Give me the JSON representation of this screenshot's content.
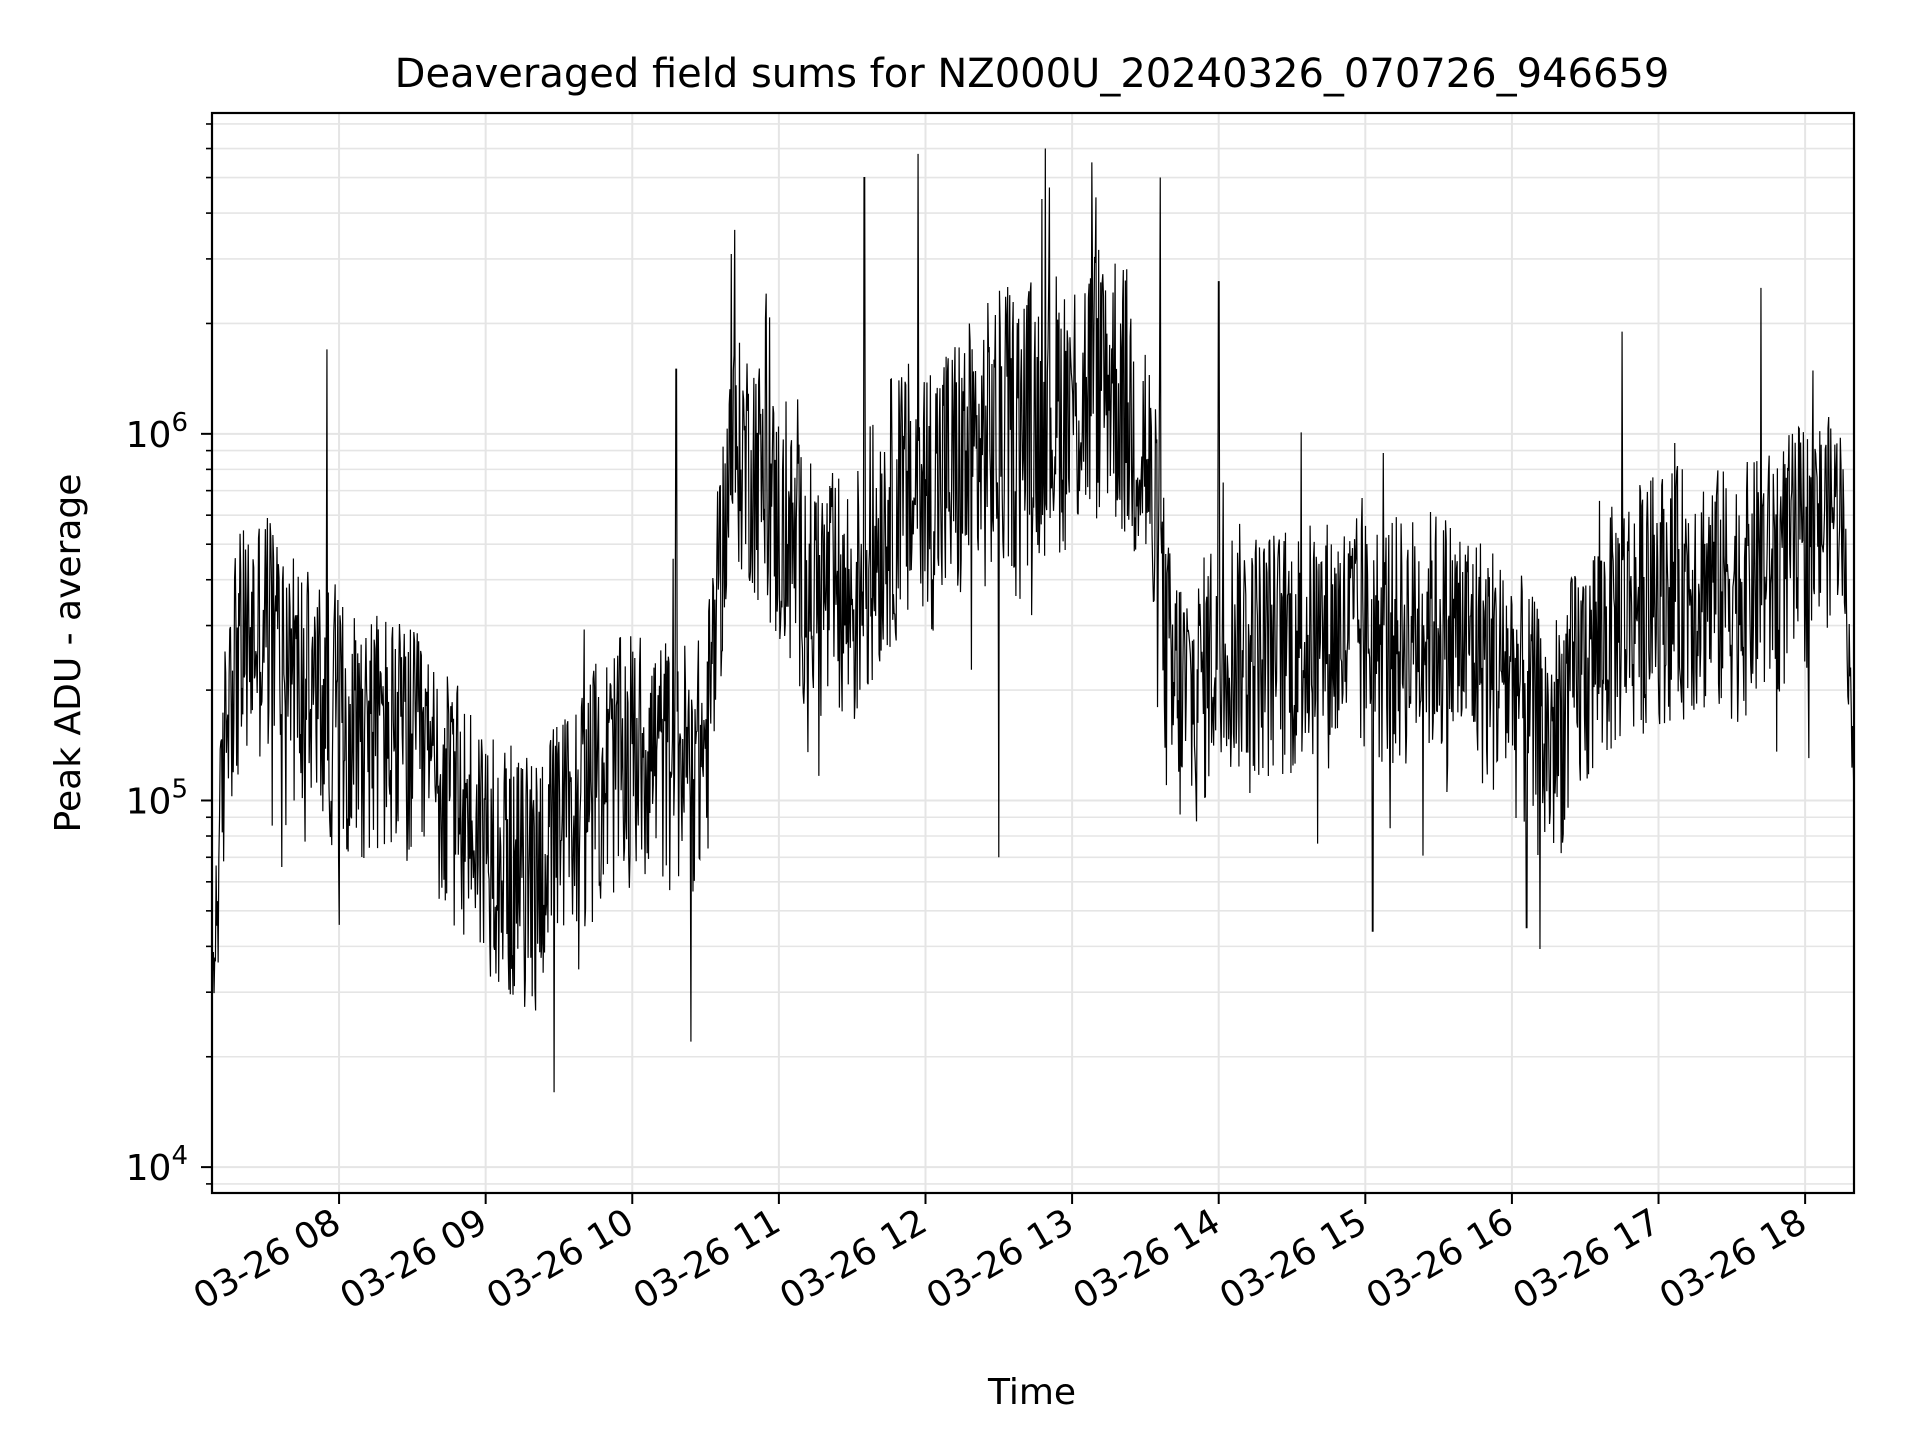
{
  "chart_data": {
    "type": "line",
    "title": "Deaveraged field sums for NZ000U_20240326_070726_946659",
    "xlabel": "Time",
    "ylabel": "Peak ADU - average",
    "y_scale": "log",
    "ylim": [
      8500,
      7500000
    ],
    "xlim": [
      "03-26 07:08",
      "03-26 18:20"
    ],
    "x_tick_labels": [
      "03-26 08",
      "03-26 09",
      "03-26 10",
      "03-26 11",
      "03-26 12",
      "03-26 13",
      "03-26 14",
      "03-26 15",
      "03-26 16",
      "03-26 17",
      "03-26 18"
    ],
    "y_ticks": [
      {
        "value": 10000,
        "base": "10",
        "exp": "4"
      },
      {
        "value": 100000,
        "base": "10",
        "exp": "5"
      },
      {
        "value": 1000000,
        "base": "10",
        "exp": "6"
      }
    ],
    "grid": true,
    "line_color": "#000000",
    "grid_color": "#e5e5e5",
    "series": [
      {
        "name": "",
        "note_envelope": "median level with typical scatter range",
        "x": [
          "03-26 07:08",
          "03-26 07:15",
          "03-26 07:30",
          "03-26 07:45",
          "03-26 08:00",
          "03-26 08:15",
          "03-26 08:30",
          "03-26 08:45",
          "03-26 09:00",
          "03-26 09:15",
          "03-26 09:30",
          "03-26 09:45",
          "03-26 10:00",
          "03-26 10:15",
          "03-26 10:30",
          "03-26 10:40",
          "03-26 10:50",
          "03-26 11:00",
          "03-26 11:15",
          "03-26 11:30",
          "03-26 11:45",
          "03-26 12:00",
          "03-26 12:15",
          "03-26 12:30",
          "03-26 12:45",
          "03-26 13:00",
          "03-26 13:15",
          "03-26 13:30",
          "03-26 13:40",
          "03-26 13:50",
          "03-26 14:00",
          "03-26 14:15",
          "03-26 14:30",
          "03-26 14:45",
          "03-26 15:00",
          "03-26 15:15",
          "03-26 15:30",
          "03-26 15:45",
          "03-26 16:00",
          "03-26 16:15",
          "03-26 16:30",
          "03-26 16:45",
          "03-26 17:00",
          "03-26 17:15",
          "03-26 17:30",
          "03-26 17:45",
          "03-26 18:00",
          "03-26 18:15",
          "03-26 18:20"
        ],
        "y": [
          30000,
          250000,
          330000,
          220000,
          180000,
          170000,
          150000,
          110000,
          85000,
          65000,
          85000,
          120000,
          150000,
          140000,
          140000,
          900000,
          900000,
          600000,
          400000,
          350000,
          650000,
          700000,
          800000,
          1000000,
          1100000,
          1200000,
          1500000,
          900000,
          200000,
          200000,
          300000,
          280000,
          280000,
          300000,
          300000,
          300000,
          320000,
          280000,
          230000,
          150000,
          250000,
          350000,
          400000,
          420000,
          400000,
          450000,
          550000,
          700000,
          120000
        ],
        "spread_low": [
          0.6,
          0.4,
          0.4,
          0.4,
          0.4,
          0.4,
          0.4,
          0.4,
          0.4,
          0.4,
          0.4,
          0.4,
          0.4,
          0.4,
          0.4,
          0.5,
          0.4,
          0.4,
          0.4,
          0.4,
          0.4,
          0.4,
          0.4,
          0.4,
          0.4,
          0.4,
          0.4,
          0.4,
          0.4,
          0.4,
          0.4,
          0.4,
          0.4,
          0.4,
          0.4,
          0.4,
          0.4,
          0.4,
          0.4,
          0.4,
          0.4,
          0.4,
          0.4,
          0.4,
          0.4,
          0.4,
          0.4,
          0.5,
          0.8
        ],
        "spread_high": [
          1.5,
          2.0,
          2.0,
          2.0,
          2.0,
          2.0,
          2.0,
          2.0,
          2.0,
          2.0,
          2.0,
          2.0,
          2.0,
          2.0,
          2.0,
          2.0,
          2.0,
          2.0,
          2.0,
          2.2,
          2.2,
          2.5,
          2.5,
          2.5,
          2.5,
          2.5,
          2.5,
          2.5,
          2.5,
          2.0,
          2.0,
          2.0,
          2.0,
          2.0,
          2.0,
          2.0,
          2.0,
          2.0,
          2.0,
          2.0,
          2.0,
          2.0,
          2.0,
          2.0,
          2.0,
          2.0,
          2.0,
          1.6,
          1.2
        ]
      }
    ],
    "spikes": [
      {
        "x": "03-26 07:55",
        "y": 1700000
      },
      {
        "x": "03-26 09:28",
        "y": 16000
      },
      {
        "x": "03-26 10:18",
        "y": 1500000
      },
      {
        "x": "03-26 10:24",
        "y": 22000
      },
      {
        "x": "03-26 10:42",
        "y": 3600000
      },
      {
        "x": "03-26 11:35",
        "y": 5000000
      },
      {
        "x": "03-26 11:57",
        "y": 5800000
      },
      {
        "x": "03-26 12:30",
        "y": 70000
      },
      {
        "x": "03-26 12:49",
        "y": 6000000
      },
      {
        "x": "03-26 13:08",
        "y": 5500000
      },
      {
        "x": "03-26 13:36",
        "y": 5000000
      },
      {
        "x": "03-26 14:00",
        "y": 2600000
      },
      {
        "x": "03-26 15:03",
        "y": 44000
      },
      {
        "x": "03-26 16:06",
        "y": 45000
      },
      {
        "x": "03-26 16:45",
        "y": 1900000
      },
      {
        "x": "03-26 17:42",
        "y": 2500000
      }
    ]
  }
}
